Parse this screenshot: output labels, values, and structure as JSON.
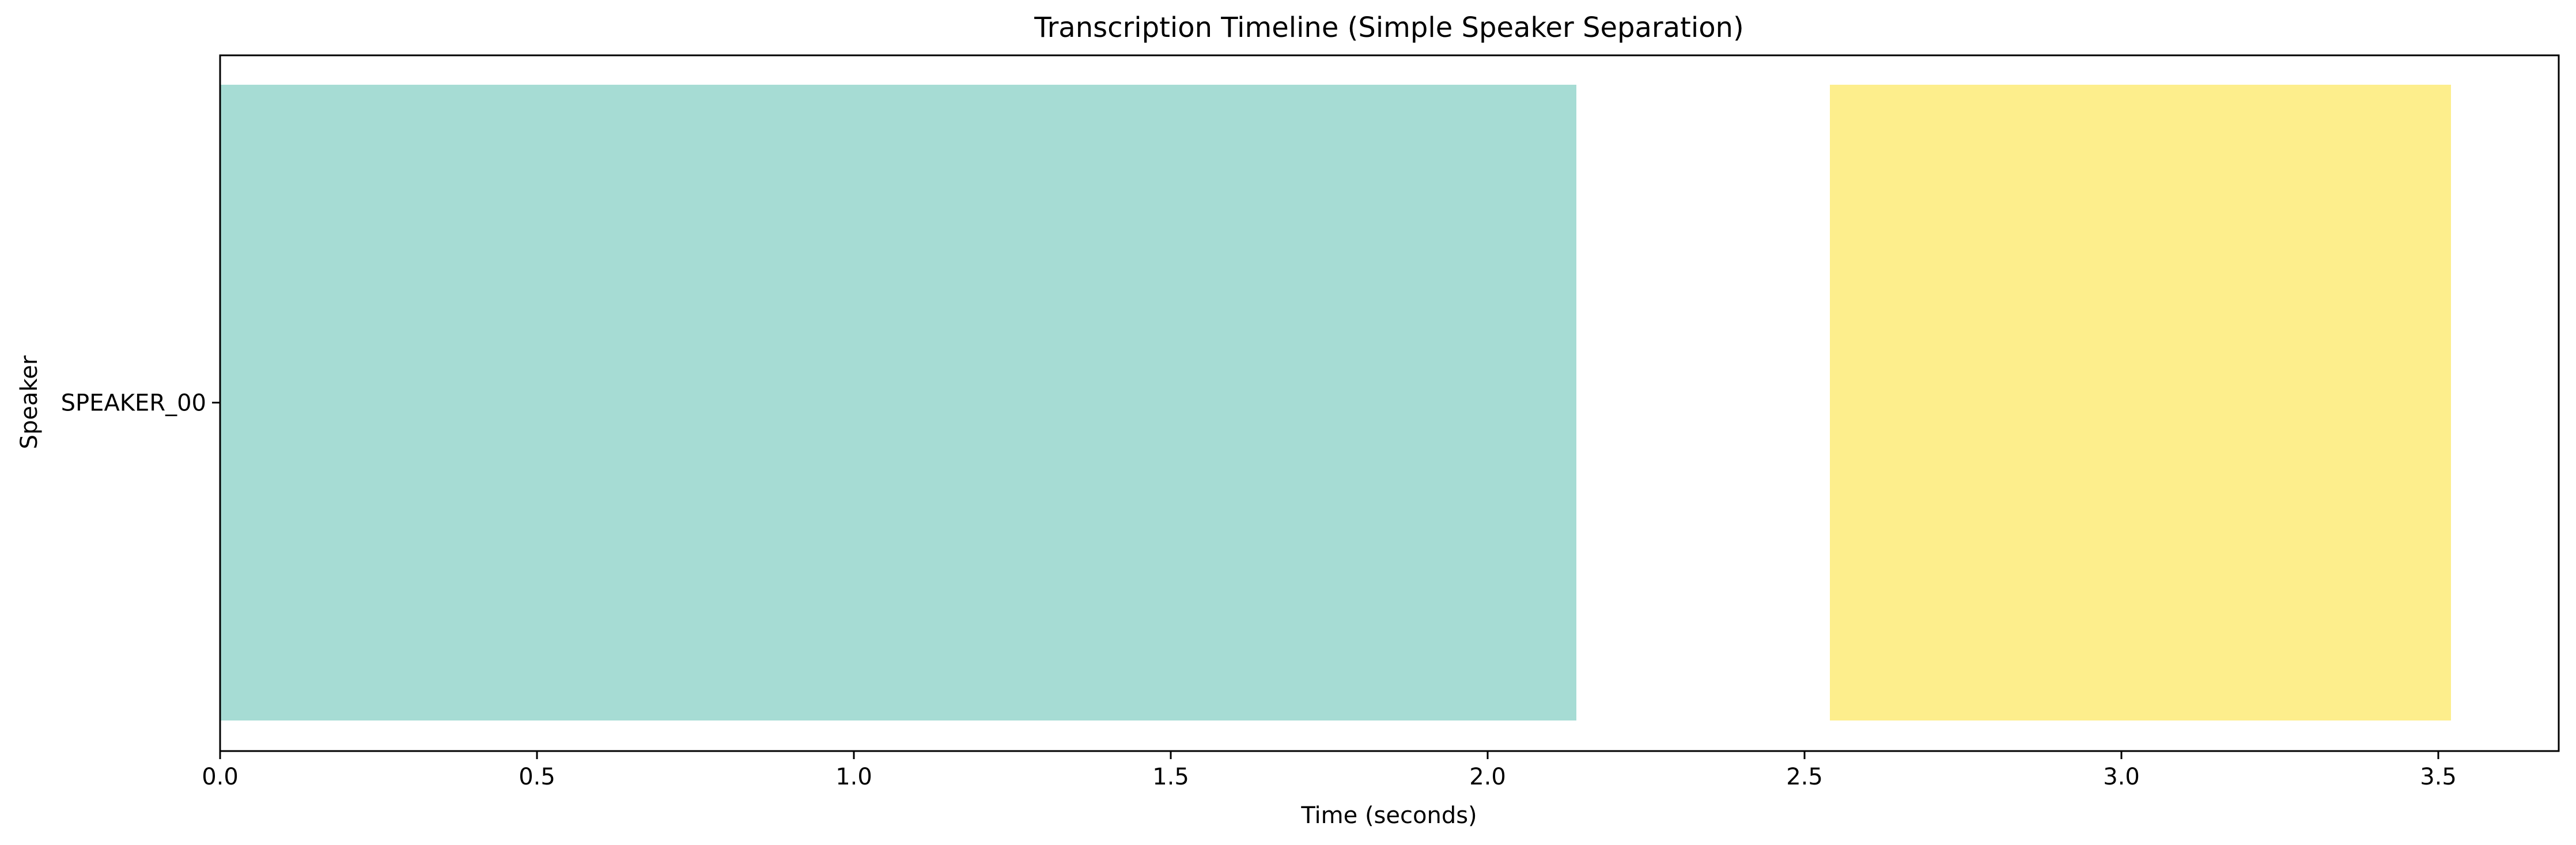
{
  "chart_data": {
    "type": "bar",
    "orientation": "horizontal-timeline",
    "title": "Transcription Timeline (Simple Speaker Separation)",
    "xlabel": "Time (seconds)",
    "ylabel": "Speaker",
    "xlim": [
      0,
      3.69
    ],
    "x_ticks": [
      0.0,
      0.5,
      1.0,
      1.5,
      2.0,
      2.5,
      3.0,
      3.5
    ],
    "x_tick_labels": [
      "0.0",
      "0.5",
      "1.0",
      "1.5",
      "2.0",
      "2.5",
      "3.0",
      "3.5"
    ],
    "categories": [
      "SPEAKER_00"
    ],
    "segments": [
      {
        "speaker": "SPEAKER_00",
        "start": 0.0,
        "end": 2.14,
        "color": "#a6dcd4"
      },
      {
        "speaker": "SPEAKER_00",
        "start": 2.54,
        "end": 3.52,
        "color": "#fdee8c"
      }
    ],
    "grid": false,
    "legend": "none"
  }
}
